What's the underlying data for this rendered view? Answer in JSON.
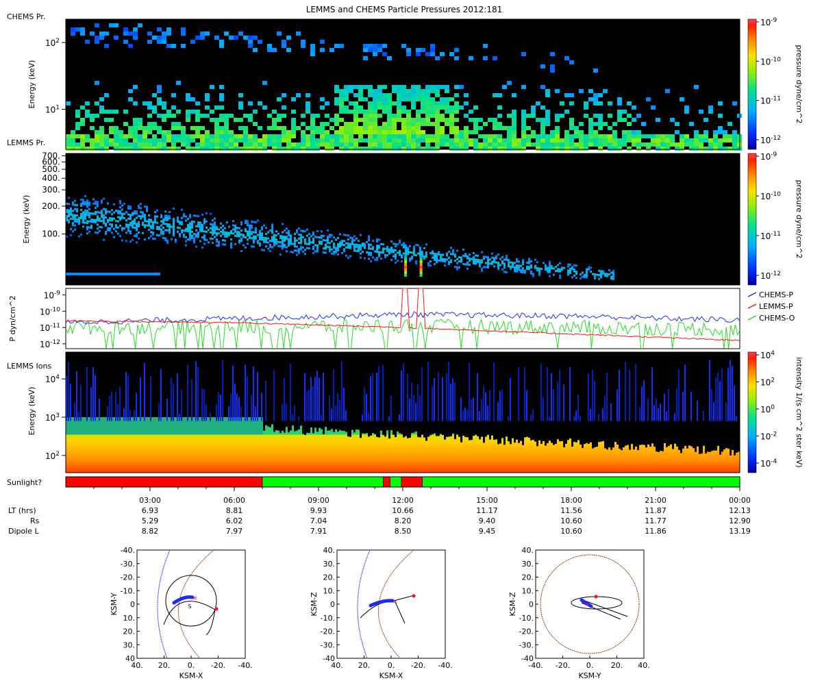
{
  "title": "LEMMS and CHEMS Particle Pressures  2012:181",
  "colors": {
    "black": "#000000",
    "blue": "#1a2bff",
    "red": "#ff1010",
    "green": "#22dd22",
    "brown": "#8b3a0f"
  },
  "panel_labels": {
    "p1": "CHEMS Pr.",
    "p2": "LEMMS Pr.",
    "p4": "LEMMS Ions",
    "sun": "Sunlight?"
  },
  "chart_data": [
    {
      "type": "heatmap",
      "id": "chems",
      "ylabel": "Energy (keV)",
      "ytick_labels": [
        "10^2",
        "10^1"
      ],
      "yrange_log": [
        0.4,
        2.35
      ],
      "yticks": [
        2,
        1
      ],
      "colorbar": {
        "label": "pressure dyne/cm^2",
        "ticks": [
          "10^-9",
          "10^-10",
          "10^-11",
          "10^-12"
        ]
      }
    },
    {
      "type": "heatmap",
      "id": "lemms",
      "ylabel": "Energy (keV)",
      "ytick_labels": [
        "700.",
        "600.",
        "500.",
        "400.",
        "300.",
        "200.",
        "100."
      ],
      "ytick_values": [
        700,
        600,
        500,
        400,
        300,
        200,
        100
      ],
      "yrange_log": [
        1.45,
        2.87
      ],
      "colorbar": {
        "label": "pressure dyne/cm^2",
        "ticks": [
          "10^-9",
          "10^-10",
          "10^-11",
          "10^-12"
        ]
      }
    },
    {
      "type": "line",
      "id": "pressure",
      "ylabel": "P dyn/cm^2",
      "ytick_labels": [
        "10^-9",
        "10^-10",
        "10^-11",
        "10^-12"
      ],
      "yticks": [
        -9,
        -10,
        -11,
        -12
      ],
      "yrange_log": [
        -12.3,
        -8.6
      ],
      "legend": [
        "CHEMS-P",
        "LEMMS-P",
        "CHEMS-O"
      ],
      "series": [
        {
          "name": "CHEMS-P",
          "trend": [
            [
              0,
              -10.7
            ],
            [
              6,
              -10.45
            ],
            [
              12,
              -10.2
            ],
            [
              18,
              -10.3
            ],
            [
              24,
              -10.55
            ]
          ]
        },
        {
          "name": "LEMMS-P",
          "trend": [
            [
              0,
              -10.6
            ],
            [
              6,
              -10.7
            ],
            [
              12,
              -11.0
            ],
            [
              18,
              -11.4
            ],
            [
              24,
              -11.8
            ]
          ],
          "spikes": [
            [
              12.1,
              -8.7
            ],
            [
              12.65,
              -8.7
            ]
          ]
        },
        {
          "name": "CHEMS-O",
          "trend": [
            [
              0,
              -11.0
            ],
            [
              12,
              -10.9
            ],
            [
              24,
              -11.1
            ]
          ]
        }
      ]
    },
    {
      "type": "heatmap",
      "id": "ions",
      "ylabel": "Energy (keV)",
      "ytick_labels": [
        "10^4",
        "10^3",
        "10^2"
      ],
      "yticks": [
        4,
        3,
        2
      ],
      "yrange_log": [
        1.55,
        4.7
      ],
      "colorbar": {
        "label": "intensity 1/(s cm^2 ster keV)",
        "ticks": [
          "10^4",
          "10^2",
          "10^0",
          "10^-2",
          "10^-4"
        ]
      }
    },
    {
      "type": "bar",
      "id": "sunlight",
      "segments": [
        {
          "from": 0,
          "to": 7.0,
          "state": "shadow"
        },
        {
          "from": 7.0,
          "to": 11.3,
          "state": "sun"
        },
        {
          "from": 11.3,
          "to": 11.55,
          "state": "shadow"
        },
        {
          "from": 11.55,
          "to": 11.95,
          "state": "sun"
        },
        {
          "from": 11.95,
          "to": 12.7,
          "state": "shadow"
        },
        {
          "from": 12.7,
          "to": 24,
          "state": "sun"
        }
      ]
    }
  ],
  "xaxis": {
    "range_hours": [
      0,
      24
    ],
    "ticks": [
      {
        "h": 3,
        "label": "03:00",
        "lt": "6.93",
        "rs": "5.29",
        "dl": "8.82"
      },
      {
        "h": 6,
        "label": "06:00",
        "lt": "8.81",
        "rs": "6.02",
        "dl": "7.97"
      },
      {
        "h": 9,
        "label": "09:00",
        "lt": "9.93",
        "rs": "7.04",
        "dl": "7.91"
      },
      {
        "h": 12,
        "label": "12:00",
        "lt": "10.66",
        "rs": "8.20",
        "dl": "8.50"
      },
      {
        "h": 15,
        "label": "15:00",
        "lt": "11.17",
        "rs": "9.40",
        "dl": "9.45"
      },
      {
        "h": 18,
        "label": "18:00",
        "lt": "11.56",
        "rs": "10.60",
        "dl": "10.60"
      },
      {
        "h": 21,
        "label": "21:00",
        "lt": "11.87",
        "rs": "11.77",
        "dl": "11.86"
      },
      {
        "h": 24,
        "label": "00:00",
        "lt": "12.13",
        "rs": "12.90",
        "dl": "13.19"
      }
    ],
    "row_labels": {
      "lt": "LT (hrs)",
      "rs": "Rs",
      "dl": "Dipole L"
    }
  },
  "orbits": [
    {
      "id": "xy",
      "xlabel": "KSM-X",
      "ylabel": "KSM-Y",
      "xticks": [
        "40.",
        "20.",
        "0.",
        "-20.",
        "-40."
      ],
      "yticks": [
        "-40.",
        "-30.",
        "-20.",
        "-10.",
        "0",
        "10.",
        "20.",
        "30.",
        "40"
      ],
      "annotation": "S"
    },
    {
      "id": "xz",
      "xlabel": "KSM-X",
      "ylabel": "KSM-Z",
      "xticks": [
        "40.",
        "20.",
        "0.",
        "-20.",
        "-40."
      ],
      "yticks": [
        "40.",
        "30.",
        "20.",
        "10.",
        "0",
        "-10.",
        "-20.",
        "-30.",
        "-40"
      ]
    },
    {
      "id": "yz",
      "xlabel": "KSM-Y",
      "ylabel": "KSM-Z",
      "xticks": [
        "-40.",
        "-20.",
        "0.",
        "20.",
        "40."
      ],
      "yticks": [
        "40.",
        "30.",
        "20.",
        "10.",
        "0",
        "-10.",
        "-20.",
        "-30.",
        "-40"
      ]
    }
  ]
}
